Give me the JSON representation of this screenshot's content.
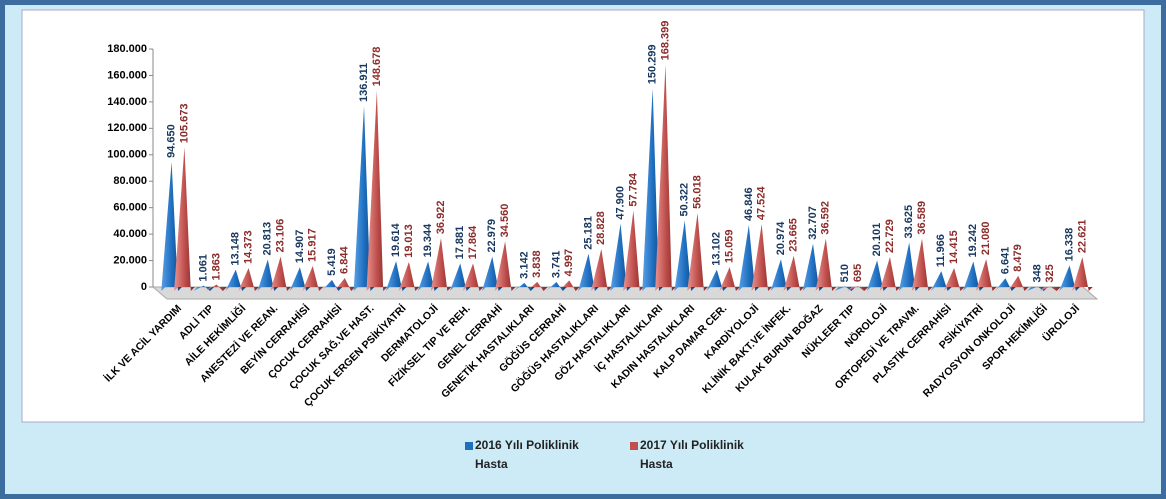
{
  "chart_data": {
    "type": "bar",
    "categories": [
      "İLK VE ACİL YARDIM",
      "ADLİ TIP",
      "AİLE HEKİMLİĞİ",
      "ANESTEZİ VE REAN.",
      "BEYİN CERRAHİSİ",
      "ÇOCUK CERRAHİSİ",
      "ÇOCUK SAĞ.VE HAST.",
      "ÇOCUK ERGEN PSİKİYATRİ",
      "DERMATOLOJİ",
      "FİZİKSEL TIP VE REH.",
      "GENEL CERRAHİ",
      "GENETİK HASTALIKLARI",
      "GÖĞÜS CERRAHİ",
      "GÖĞÜS HASTALIKLARI",
      "GÖZ HASTALIKLARI",
      "İÇ HASTALIKLARI",
      "KADIN HASTALIKLARI",
      "KALP DAMAR CER.",
      "KARDİYOLOJİ",
      "KLİNİK BAKT.VE İNFEK.",
      "KULAK BURUN BOĞAZ",
      "NÜKLEER TIP",
      "NÖROLOJİ",
      "ORTOPEDİ VE TRAVM.",
      "PLASTİK CERRAHİSİ",
      "PSİKİYATRİ",
      "RADYOSYON ONKOLOJİ",
      "SPOR HEKİMLİĞİ",
      "ÜROLOJİ"
    ],
    "series": [
      {
        "name": "2016 Yılı Poliklinik Hasta",
        "color": "#1f6fc0",
        "values": [
          94650,
          1061,
          13148,
          20813,
          14907,
          5419,
          136911,
          19614,
          19344,
          17881,
          22979,
          3142,
          3741,
          25181,
          47900,
          150299,
          50322,
          13102,
          46846,
          20974,
          32707,
          510,
          20101,
          33625,
          11966,
          19242,
          6641,
          348,
          16338
        ],
        "value_labels": [
          "94.650",
          "1.061",
          "13.148",
          "20.813",
          "14.907",
          "5.419",
          "136.911",
          "19.614",
          "19.344",
          "17.881",
          "22.979",
          "3.142",
          "3.741",
          "25.181",
          "47.900",
          "150.299",
          "50.322",
          "13.102",
          "46.846",
          "20.974",
          "32.707",
          "510",
          "20.101",
          "33.625",
          "11.966",
          "19.242",
          "6.641",
          "348",
          "16.338"
        ]
      },
      {
        "name": "2017 Yılı Poliklinik Hasta",
        "color": "#c0504d",
        "values": [
          105673,
          1863,
          14373,
          23106,
          15917,
          6844,
          148678,
          19013,
          36922,
          17864,
          34560,
          3838,
          4997,
          28828,
          57784,
          168399,
          56018,
          15059,
          47524,
          23665,
          36592,
          695,
          22729,
          36589,
          14415,
          21080,
          8479,
          325,
          22621
        ],
        "value_labels": [
          "105.673",
          "1.863",
          "14.373",
          "23.106",
          "15.917",
          "6.844",
          "148.678",
          "19.013",
          "36.922",
          "17.864",
          "34.560",
          "3.838",
          "4.997",
          "28.828",
          "57.784",
          "168.399",
          "56.018",
          "15.059",
          "47.524",
          "23.665",
          "36.592",
          "695",
          "22.729",
          "36.589",
          "14.415",
          "21.080",
          "8.479",
          "325",
          "22.621"
        ]
      }
    ],
    "ylim": [
      0,
      180000
    ],
    "yticks": [
      0,
      {
        "value": 20000,
        "label": "20.000"
      },
      {
        "value": 40000,
        "label": "40.000"
      },
      {
        "value": 60000,
        "label": "60.000"
      },
      {
        "value": 80000,
        "label": "80.000"
      },
      {
        "value": 100000,
        "label": "100.000"
      },
      {
        "value": 120000,
        "label": "120.000"
      },
      {
        "value": 140000,
        "label": "140.000"
      },
      {
        "value": 160000,
        "label": "160.000"
      },
      {
        "value": 180000,
        "label": "180.000"
      }
    ],
    "legend": "bottom"
  }
}
